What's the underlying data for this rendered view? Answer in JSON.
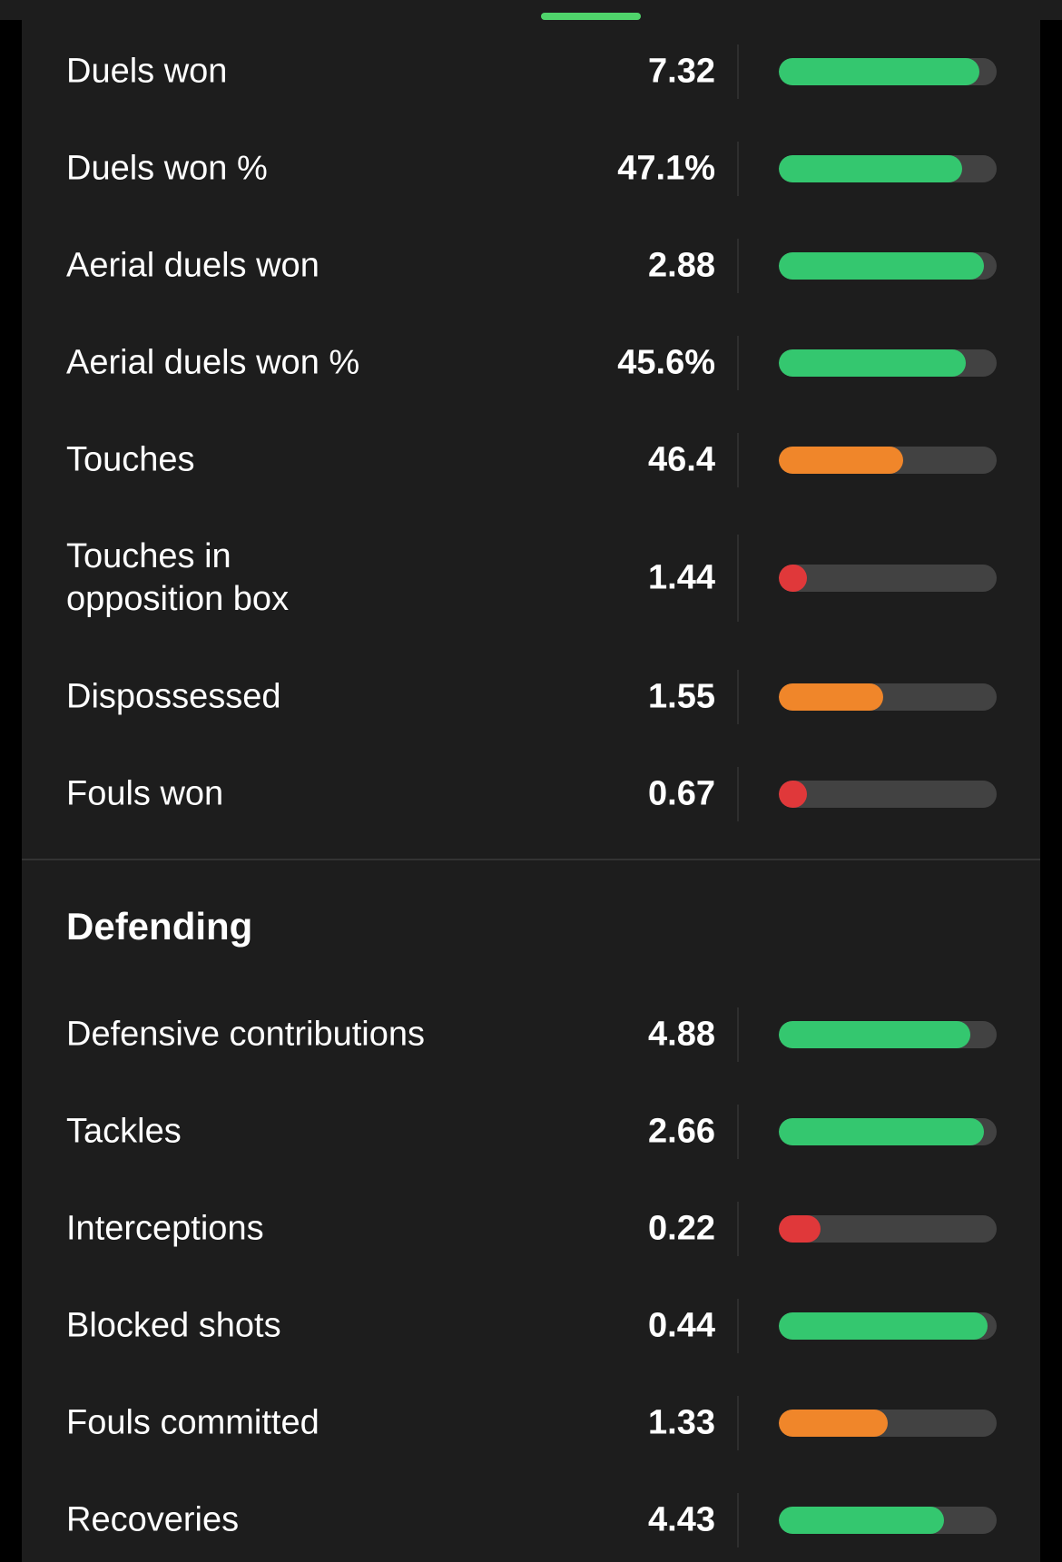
{
  "colors": {
    "background": "#1d1d1d",
    "good": "#34c76f",
    "average": "#f0862a",
    "poor": "#e0383a",
    "track": "#424242",
    "grabber": "#4fd46b"
  },
  "sections": [
    {
      "title": "",
      "rows": [
        {
          "label": "Duels won",
          "value": "7.32",
          "bar_fraction": 0.92,
          "rating": "good"
        },
        {
          "label": "Duels won %",
          "value": "47.1%",
          "bar_fraction": 0.84,
          "rating": "good"
        },
        {
          "label": "Aerial duels won",
          "value": "2.88",
          "bar_fraction": 0.94,
          "rating": "good"
        },
        {
          "label": "Aerial duels won %",
          "value": "45.6%",
          "bar_fraction": 0.86,
          "rating": "good"
        },
        {
          "label": "Touches",
          "value": "46.4",
          "bar_fraction": 0.57,
          "rating": "average"
        },
        {
          "label": "Touches in opposition box",
          "value": "1.44",
          "bar_fraction": 0.13,
          "rating": "poor"
        },
        {
          "label": "Dispossessed",
          "value": "1.55",
          "bar_fraction": 0.48,
          "rating": "average"
        },
        {
          "label": "Fouls won",
          "value": "0.67",
          "bar_fraction": 0.13,
          "rating": "poor"
        }
      ]
    },
    {
      "title": "Defending",
      "rows": [
        {
          "label": "Defensive contributions",
          "value": "4.88",
          "bar_fraction": 0.88,
          "rating": "good"
        },
        {
          "label": "Tackles",
          "value": "2.66",
          "bar_fraction": 0.94,
          "rating": "good"
        },
        {
          "label": "Interceptions",
          "value": "0.22",
          "bar_fraction": 0.19,
          "rating": "poor"
        },
        {
          "label": "Blocked shots",
          "value": "0.44",
          "bar_fraction": 0.96,
          "rating": "good"
        },
        {
          "label": "Fouls committed",
          "value": "1.33",
          "bar_fraction": 0.5,
          "rating": "average"
        },
        {
          "label": "Recoveries",
          "value": "4.43",
          "bar_fraction": 0.76,
          "rating": "good"
        }
      ]
    }
  ]
}
